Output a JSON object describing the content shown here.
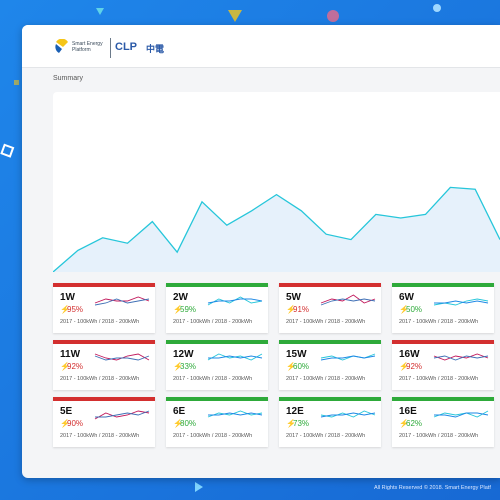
{
  "header": {
    "brand": "Smart Energy Platform",
    "partner": "CLP",
    "partner_chinese": "中電"
  },
  "section_title": "Summary",
  "summary_chart": {
    "type": "area",
    "values": [
      0,
      12,
      19,
      16,
      28,
      11,
      39,
      26,
      34,
      43,
      34,
      21,
      18,
      32,
      30,
      32,
      47,
      46,
      18
    ],
    "ylim": [
      0,
      100
    ],
    "color": "#26c6da"
  },
  "cards": [
    {
      "name": "1W",
      "usage": "95%",
      "status": "red",
      "note": "2017 - 100kWh / 2018 - 200kWh",
      "trend": [
        [
          4,
          6,
          5,
          5,
          7,
          5
        ],
        [
          3,
          4,
          6,
          4,
          5,
          6
        ]
      ]
    },
    {
      "name": "2W",
      "usage": "59%",
      "status": "green",
      "note": "2017 - 100kWh / 2018 - 200kWh",
      "trend": [
        [
          3,
          6,
          4,
          7,
          4,
          5
        ],
        [
          4,
          5,
          5,
          6,
          6,
          5
        ]
      ]
    },
    {
      "name": "5W",
      "usage": "91%",
      "status": "red",
      "note": "2017 - 100kWh / 2018 - 200kWh",
      "trend": [
        [
          4,
          6,
          5,
          8,
          4,
          6
        ],
        [
          3,
          5,
          6,
          5,
          6,
          5
        ]
      ]
    },
    {
      "name": "6W",
      "usage": "50%",
      "status": "green",
      "note": "2017 - 100kWh / 2018 - 200kWh",
      "trend": [
        [
          3,
          4,
          3,
          5,
          6,
          5
        ],
        [
          4,
          4,
          5,
          4,
          5,
          4
        ]
      ]
    },
    {
      "name": "11W",
      "usage": "92%",
      "status": "red",
      "note": "2017 - 100kWh / 2018 - 200kWh",
      "trend": [
        [
          7,
          5,
          4,
          6,
          7,
          4
        ],
        [
          6,
          4,
          5,
          5,
          4,
          6
        ]
      ]
    },
    {
      "name": "12W",
      "usage": "33%",
      "status": "green",
      "note": "2017 - 100kWh / 2018 - 200kWh",
      "trend": [
        [
          4,
          7,
          5,
          6,
          4,
          7
        ],
        [
          5,
          5,
          6,
          5,
          6,
          5
        ]
      ]
    },
    {
      "name": "15W",
      "usage": "60%",
      "status": "green",
      "note": "2017 - 100kWh / 2018 - 200kWh",
      "trend": [
        [
          5,
          6,
          4,
          6,
          5,
          7
        ],
        [
          4,
          5,
          5,
          6,
          5,
          6
        ]
      ]
    },
    {
      "name": "16W",
      "usage": "92%",
      "status": "red",
      "note": "2017 - 100kWh / 2018 - 200kWh",
      "trend": [
        [
          6,
          4,
          6,
          5,
          7,
          5
        ],
        [
          5,
          6,
          4,
          6,
          5,
          6
        ]
      ]
    },
    {
      "name": "5E",
      "usage": "90%",
      "status": "red",
      "note": "2017 - 100kWh / 2018 - 200kWh",
      "trend": [
        [
          3,
          6,
          4,
          5,
          7,
          6
        ],
        [
          4,
          4,
          5,
          6,
          5,
          7
        ]
      ]
    },
    {
      "name": "6E",
      "usage": "80%",
      "status": "green",
      "note": "2017 - 100kWh / 2018 - 200kWh",
      "trend": [
        [
          4,
          6,
          5,
          7,
          5,
          6
        ],
        [
          5,
          5,
          6,
          5,
          6,
          5
        ]
      ]
    },
    {
      "name": "12E",
      "usage": "73%",
      "status": "green",
      "note": "2017 - 100kWh / 2018 - 200kWh",
      "trend": [
        [
          5,
          4,
          6,
          4,
          7,
          5
        ],
        [
          4,
          5,
          5,
          6,
          5,
          6
        ]
      ]
    },
    {
      "name": "16E",
      "usage": "62%",
      "status": "green",
      "note": "2017 - 100kWh / 2018 - 200kWh",
      "trend": [
        [
          4,
          6,
          5,
          6,
          4,
          7
        ],
        [
          5,
          5,
          4,
          6,
          6,
          5
        ]
      ]
    }
  ],
  "footer": "All Rights Reserved © 2018. Smart Energy Platf"
}
